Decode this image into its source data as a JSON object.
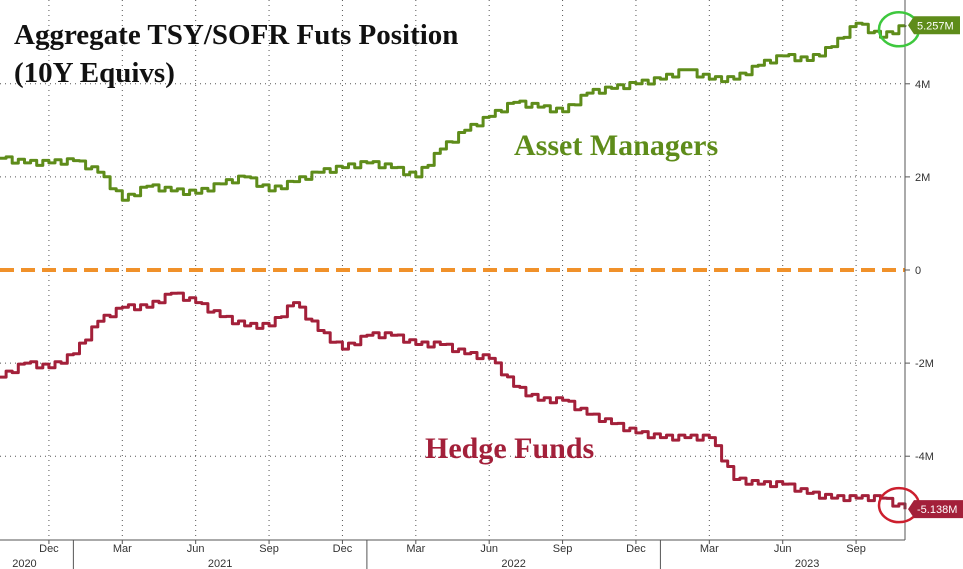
{
  "chart_data": {
    "type": "line",
    "title": [
      "Aggregate TSY/SOFR Futs Position",
      "(10Y Equivs)"
    ],
    "x_start": "2020-10",
    "x_end": "2023-11",
    "ylim": [
      -5.8,
      5.8
    ],
    "y_ticks": [
      {
        "value": 4,
        "label": "4M"
      },
      {
        "value": 2,
        "label": "2M"
      },
      {
        "value": 0,
        "label": "0"
      },
      {
        "value": -2,
        "label": "-2M"
      },
      {
        "value": -4,
        "label": "-4M"
      }
    ],
    "x_month_ticks": [
      "Dec",
      "Mar",
      "Jun",
      "Sep",
      "Dec",
      "Mar",
      "Jun",
      "Sep",
      "Dec",
      "Mar",
      "Jun",
      "Sep"
    ],
    "x_month_dates": [
      "2020-12",
      "2021-03",
      "2021-06",
      "2021-09",
      "2021-12",
      "2022-03",
      "2022-06",
      "2022-09",
      "2022-12",
      "2023-03",
      "2023-06",
      "2023-09"
    ],
    "x_year_labels": [
      "2020",
      "2021",
      "2022",
      "2023"
    ],
    "x_year_dates": [
      "2020-11",
      "2021-07",
      "2022-07",
      "2023-07"
    ],
    "grid": true,
    "zero_line": {
      "value": 0,
      "color": "#f0912a",
      "style": "dashed"
    },
    "series": [
      {
        "name": "Asset Managers",
        "color": "#5e8c1a",
        "last_label": "5.257M",
        "x": [
          "2020-10",
          "2020-11",
          "2020-12",
          "2021-01",
          "2021-02",
          "2021-03",
          "2021-04",
          "2021-05",
          "2021-06",
          "2021-07",
          "2021-08",
          "2021-09",
          "2021-10",
          "2021-11",
          "2021-12",
          "2022-01",
          "2022-02",
          "2022-03",
          "2022-04",
          "2022-05",
          "2022-06",
          "2022-07",
          "2022-08",
          "2022-09",
          "2022-10",
          "2022-11",
          "2022-12",
          "2023-01",
          "2023-02",
          "2023-03",
          "2023-04",
          "2023-05",
          "2023-06",
          "2023-07",
          "2023-08",
          "2023-09",
          "2023-10",
          "2023-11"
        ],
        "values": [
          2.4,
          2.3,
          2.3,
          2.35,
          2.1,
          1.5,
          1.8,
          1.7,
          1.65,
          1.85,
          2.0,
          1.7,
          1.9,
          2.1,
          2.2,
          2.3,
          2.2,
          2.0,
          2.6,
          3.0,
          3.3,
          3.6,
          3.5,
          3.4,
          3.8,
          3.9,
          4.0,
          4.1,
          4.3,
          4.1,
          4.1,
          4.4,
          4.6,
          4.5,
          4.8,
          5.3,
          5.0,
          5.257
        ]
      },
      {
        "name": "Hedge Funds",
        "color": "#a3203a",
        "last_label": "-5.138M",
        "x": [
          "2020-10",
          "2020-11",
          "2020-12",
          "2021-01",
          "2021-02",
          "2021-03",
          "2021-04",
          "2021-05",
          "2021-06",
          "2021-07",
          "2021-08",
          "2021-09",
          "2021-10",
          "2021-11",
          "2021-12",
          "2022-01",
          "2022-02",
          "2022-03",
          "2022-04",
          "2022-05",
          "2022-06",
          "2022-07",
          "2022-08",
          "2022-09",
          "2022-10",
          "2022-11",
          "2022-12",
          "2023-01",
          "2023-02",
          "2023-03",
          "2023-04",
          "2023-05",
          "2023-06",
          "2023-07",
          "2023-08",
          "2023-09",
          "2023-10",
          "2023-11"
        ],
        "values": [
          -2.3,
          -2.0,
          -2.1,
          -1.8,
          -1.1,
          -0.8,
          -0.8,
          -0.5,
          -0.7,
          -1.0,
          -1.2,
          -1.2,
          -0.7,
          -1.3,
          -1.7,
          -1.4,
          -1.4,
          -1.6,
          -1.6,
          -1.8,
          -1.9,
          -2.5,
          -2.8,
          -2.8,
          -3.1,
          -3.3,
          -3.5,
          -3.6,
          -3.6,
          -3.6,
          -4.5,
          -4.6,
          -4.6,
          -4.8,
          -4.9,
          -4.9,
          -4.9,
          -5.138
        ]
      }
    ]
  }
}
